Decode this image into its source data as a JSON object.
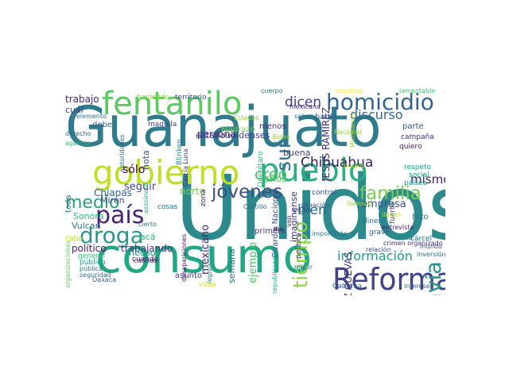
{
  "words": [
    {
      "text": "Unidos",
      "color": "#2c8a8c"
    },
    {
      "text": "Guanajuato",
      "color": "#2f7a8c"
    },
    {
      "text": "consumo",
      "color": "#22a784"
    },
    {
      "text": "gobierno",
      "color": "#c0df28"
    },
    {
      "text": "pueblo",
      "color": "#2aaf7f"
    },
    {
      "text": "fentanilo",
      "color": "#5cc862"
    },
    {
      "text": "Reforma",
      "color": "#414387"
    },
    {
      "text": "homicidio",
      "color": "#32648e"
    },
    {
      "text": "todavía",
      "color": "#26968a"
    },
    {
      "text": "droga",
      "color": "#2e978a"
    },
    {
      "text": "país",
      "color": "#482374"
    },
    {
      "text": "jóvenes",
      "color": "#3e4b89"
    },
    {
      "text": "familia",
      "color": "#75d054"
    },
    {
      "text": "medio",
      "color": "#2ba07e"
    },
    {
      "text": "tiempo",
      "color": "#88d547"
    },
    {
      "text": "sur",
      "color": "#2f6d8e"
    },
    {
      "text": "información",
      "color": "#1f9f88"
    },
    {
      "text": "Chihuahua",
      "color": "#3b1f66"
    },
    {
      "text": "creo",
      "color": "#47c16e"
    },
    {
      "text": "discurso",
      "color": "#31688e"
    },
    {
      "text": "dicen",
      "color": "#404387"
    },
    {
      "text": "mismo",
      "color": "#481a6c"
    },
    {
      "text": "bien",
      "color": "#2d708e"
    },
    {
      "text": "ejemplo",
      "color": "#4cc26c"
    },
    {
      "text": "JESÚS RAMÍREZ",
      "color": "#46327e"
    },
    {
      "text": "RAMÍREZ CUEVAS",
      "color": "#453882"
    },
    {
      "text": "Chiapas",
      "color": "#33628d"
    },
    {
      "text": "sólo",
      "color": "#440154"
    },
    {
      "text": "seguir",
      "color": "#3f4788"
    },
    {
      "text": "trabajando",
      "color": "#46317e"
    },
    {
      "text": "persona",
      "color": "#482878"
    },
    {
      "text": "estadounidenses",
      "color": "#424086"
    },
    {
      "text": "trabajo",
      "color": "#482475"
    },
    {
      "text": "años",
      "color": "#5ec962"
    },
    {
      "text": "empresa",
      "color": "#3b528b"
    },
    {
      "text": "semana",
      "color": "#2c728e"
    },
    {
      "text": "mexicano",
      "color": "#472c7a"
    },
    {
      "text": "norte",
      "color": "#7ad151"
    },
    {
      "text": "acá",
      "color": "#3bbb75"
    },
    {
      "text": "hecho",
      "color": "#21918c"
    },
    {
      "text": "político",
      "color": "#48186a"
    },
    {
      "text": "Sonora",
      "color": "#35b779"
    },
    {
      "text": "Vulcan",
      "color": "#287d8e"
    },
    {
      "text": "Miren",
      "color": "#3e4989"
    },
    {
      "text": "Oaxaca",
      "color": "#31678e"
    },
    {
      "text": "cuál",
      "color": "#3e4989"
    },
    {
      "text": "debe",
      "color": "#355f8d"
    },
    {
      "text": "nota",
      "color": "#39568c"
    },
    {
      "text": "toda",
      "color": "#2a788e"
    },
    {
      "text": "Madrazo",
      "color": "#77d153"
    },
    {
      "text": "menos",
      "color": "#472d7b"
    },
    {
      "text": "habla",
      "color": "#38588c"
    },
    {
      "text": "buena",
      "color": "#433e85"
    },
    {
      "text": "cuando",
      "color": "#482071"
    },
    {
      "text": "cuándo",
      "color": "#482071"
    },
    {
      "text": "Guardia Nacional",
      "color": "#3c508b"
    },
    {
      "text": "imagínense",
      "color": "#46337f"
    },
    {
      "text": "primera",
      "color": "#443a83"
    },
    {
      "text": "zona",
      "color": "#481b6d"
    },
    {
      "text": "mexicana",
      "color": "#481d6f"
    },
    {
      "text": "saben",
      "color": "#2e6e8e"
    },
    {
      "text": "cuerpo",
      "color": "#2c738e"
    },
    {
      "text": "territorio",
      "color": "#3e4a89"
    },
    {
      "text": "haciendo",
      "color": "#7fd34e"
    },
    {
      "text": "autoridades",
      "color": "#2c728e"
    },
    {
      "text": "maquila",
      "color": "#3f4889"
    },
    {
      "text": "Blinken",
      "color": "#228c8d"
    },
    {
      "text": "García Luna",
      "color": "#472d7b"
    },
    {
      "text": "cosas",
      "color": "#2b758e"
    },
    {
      "text": "desapariciones",
      "color": "#471365"
    },
    {
      "text": "legisladores",
      "color": "#23888e"
    },
    {
      "text": "asunto",
      "color": "#443983"
    },
    {
      "text": "lamentable",
      "color": "#40bd72"
    },
    {
      "text": "parte",
      "color": "#375a8c"
    },
    {
      "text": "campaña",
      "color": "#46307e"
    },
    {
      "text": "quiero",
      "color": "#481f70"
    },
    {
      "text": "respeto",
      "color": "#20a486"
    },
    {
      "text": "social",
      "color": "#20a386"
    },
    {
      "text": "países",
      "color": "#228d8d"
    },
    {
      "text": "control",
      "color": "#3b528b"
    },
    {
      "text": "nosotros",
      "color": "#fde725"
    },
    {
      "text": "situación",
      "color": "#3a548c"
    },
    {
      "text": "Castillo",
      "color": "#31688e"
    },
    {
      "text": "dinero",
      "color": "#2c728e"
    },
    {
      "text": "grave",
      "color": "#34618d"
    },
    {
      "text": "hizo",
      "color": "#2b758e"
    },
    {
      "text": "fuerte",
      "color": "#3e4c8a"
    },
    {
      "text": "vida",
      "color": "#25838e"
    },
    {
      "text": "cárcel",
      "color": "#2c728e"
    },
    {
      "text": "entrevista",
      "color": "#481c6e"
    },
    {
      "text": "crimen organizado",
      "color": "#46307e"
    },
    {
      "text": "relación",
      "color": "#3b528b"
    },
    {
      "text": "inversión",
      "color": "#2d708e"
    },
    {
      "text": "Caborca",
      "color": "#34618d"
    },
    {
      "text": "intereses",
      "color": "#35608d"
    },
    {
      "text": "mejor",
      "color": "#2a788e"
    },
    {
      "text": "iba",
      "color": "#481769"
    },
    {
      "text": "política",
      "color": "#453882"
    },
    {
      "text": "ven",
      "color": "#482677"
    },
    {
      "text": "grupo",
      "color": "#404588"
    },
    {
      "text": "importante",
      "color": "#2a788e"
    },
    {
      "text": "republicanos",
      "color": "#21a685"
    },
    {
      "text": "Querétaro",
      "color": "#3aba76"
    },
    {
      "text": "visita",
      "color": "#d8e219"
    },
    {
      "text": "público",
      "color": "#1f9e89"
    },
    {
      "text": "elemento",
      "color": "#2e6f8e"
    },
    {
      "text": "derecho",
      "color": "#2f6c8e"
    },
    {
      "text": "cabo",
      "color": "#bade28"
    },
    {
      "text": "agencia",
      "color": "#34b679"
    },
    {
      "text": "organizaciones",
      "color": "#62cb5f"
    },
    {
      "text": "general",
      "color": "#3dbc74"
    },
    {
      "text": "pública",
      "color": "#2e6e8e"
    },
    {
      "text": "seguridad",
      "color": "#2f6b8e"
    },
    {
      "text": "asesinato",
      "color": "#2ab07f"
    },
    {
      "text": "cierto",
      "color": "#2b748e"
    },
    {
      "text": "Biden",
      "color": "#9bd93c"
    },
    {
      "text": "ir",
      "color": "#26828e"
    },
    {
      "text": "llevan",
      "color": "#b5de2b"
    },
    {
      "text": "mundo",
      "color": "#3e4989"
    },
    {
      "text": "propia",
      "color": "#aadc32"
    },
    {
      "text": "Michoacán",
      "color": "#a5db36"
    },
    {
      "text": "Nacional",
      "color": "#95d840"
    },
    {
      "text": "Estados",
      "color": "#93d741"
    },
    {
      "text": "llamado",
      "color": "#a0da39"
    }
  ]
}
